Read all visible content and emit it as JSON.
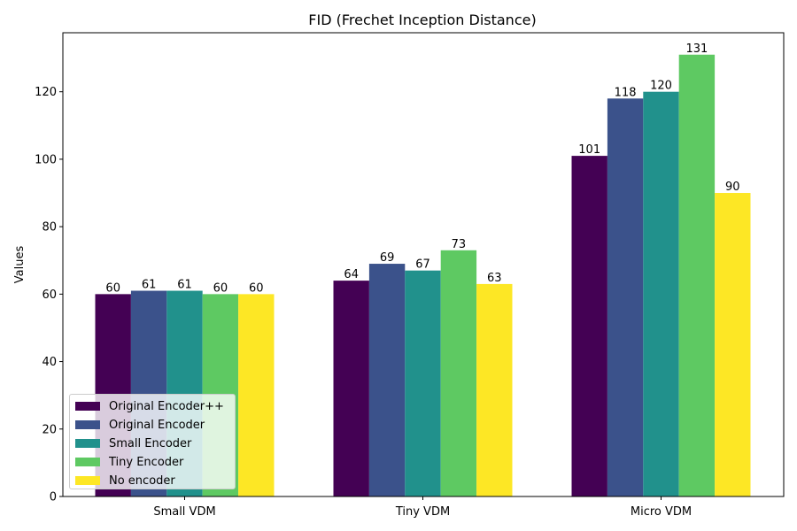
{
  "chart_data": {
    "type": "bar",
    "title": "FID (Frechet Inception Distance)",
    "xlabel": "",
    "ylabel": "Values",
    "categories": [
      "Small VDM",
      "Tiny VDM",
      "Micro VDM"
    ],
    "ylim": [
      0,
      137.5
    ],
    "yticks": [
      0,
      20,
      40,
      60,
      80,
      100,
      120
    ],
    "grid": false,
    "legend_position": "lower-left",
    "series": [
      {
        "name": "Original Encoder++",
        "color": "#440154",
        "values": [
          60,
          64,
          101
        ]
      },
      {
        "name": "Original Encoder",
        "color": "#3b528b",
        "values": [
          61,
          69,
          118
        ]
      },
      {
        "name": "Small Encoder",
        "color": "#21918c",
        "values": [
          61,
          67,
          120
        ]
      },
      {
        "name": "Tiny Encoder",
        "color": "#5ec962",
        "values": [
          60,
          73,
          131
        ]
      },
      {
        "name": "No encoder",
        "color": "#fde725",
        "values": [
          60,
          63,
          90
        ]
      }
    ]
  }
}
